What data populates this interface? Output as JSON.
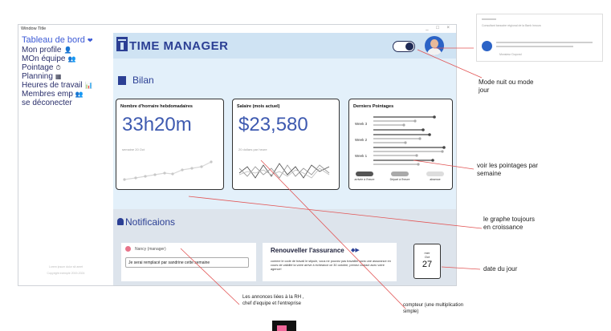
{
  "window": {
    "title": "Window Title",
    "controls": "_ □ ×"
  },
  "sidebar": {
    "items": [
      {
        "label": "Tableau de bord",
        "icon": "❤"
      },
      {
        "label": "Mon profile",
        "icon": "👤"
      },
      {
        "label": "MOn équipe",
        "icon": "👥"
      },
      {
        "label": "Pointage",
        "icon": "⏱"
      },
      {
        "label": "Planning",
        "icon": "▦"
      },
      {
        "label": "Heures de travail",
        "icon": "📊"
      },
      {
        "label": "Membres emp",
        "icon": "👥"
      },
      {
        "label": "se déconecter",
        "icon": ""
      }
    ],
    "footer": [
      "Lorem ipsum dolor sit amet",
      "Copyright exemple 2019-2024"
    ]
  },
  "header": {
    "brand": "TIME MANAGER"
  },
  "bilan": {
    "title": "Bilan",
    "cards": [
      {
        "title": "Nombre d'horraire hebdomadaires",
        "value": "33h20m",
        "sub": "semaine 20 Oct"
      },
      {
        "title": "Salaire (mois actuel)",
        "value": "$23,580",
        "sub": "20 dollars par heure"
      },
      {
        "title": "Derniers Pointages",
        "weeks": [
          "Week 3",
          "Week 2",
          "Week 1"
        ],
        "legend": [
          "arrivée à l'heure",
          "Départ à l'heure",
          "absence"
        ]
      }
    ]
  },
  "notifications": {
    "title": "Notificaions",
    "announcement": {
      "author": "Nancy (manager)",
      "message": "Je serai remplacé par sandrine cette semaine"
    },
    "insurance": {
      "title": "Renouveller l'assurance",
      "text": "comme le code de travail le stipule, vous ne pouvez pas travailler sans une assurance en cours de validité la votre arrive à échéance ce 30 octobre, prenez contact avec votre agence!"
    },
    "calendar": {
      "weekday": "mer",
      "month": "Oct",
      "day": "27"
    }
  },
  "annotations": {
    "mode": "Mode nuit ou mode jour",
    "pointages": "voir les pointages par semaine",
    "graphe": "le graphe toujours en croissance",
    "date": "date du jour",
    "annonces": "Les annonces liées à la RH , chef d'equipe et l'entreprise",
    "compteur": "compteur (une multiplication simple)",
    "mock_caption": "Consultant bancaire régional de la Bank Innova",
    "mock_name": "Monsieur Dupond"
  },
  "colors": {
    "accent": "#2b3f94",
    "panel": "#e3f0fa",
    "header": "#cfe3f3",
    "value": "#3e5ab0"
  }
}
